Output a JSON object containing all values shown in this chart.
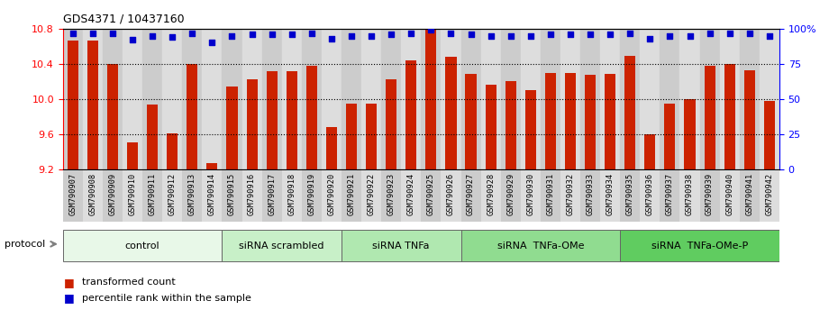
{
  "title": "GDS4371 / 10437160",
  "categories": [
    "GSM790907",
    "GSM790908",
    "GSM790909",
    "GSM790910",
    "GSM790911",
    "GSM790912",
    "GSM790913",
    "GSM790914",
    "GSM790915",
    "GSM790916",
    "GSM790917",
    "GSM790918",
    "GSM790919",
    "GSM790920",
    "GSM790921",
    "GSM790922",
    "GSM790923",
    "GSM790924",
    "GSM790925",
    "GSM790926",
    "GSM790927",
    "GSM790928",
    "GSM790929",
    "GSM790930",
    "GSM790931",
    "GSM790932",
    "GSM790933",
    "GSM790934",
    "GSM790935",
    "GSM790936",
    "GSM790937",
    "GSM790938",
    "GSM790939",
    "GSM790940",
    "GSM790941",
    "GSM790942"
  ],
  "bar_values": [
    10.67,
    10.67,
    10.4,
    9.5,
    9.94,
    9.61,
    10.4,
    9.27,
    10.14,
    10.22,
    10.32,
    10.32,
    10.38,
    9.68,
    9.95,
    9.95,
    10.22,
    10.44,
    10.8,
    10.48,
    10.28,
    10.16,
    10.2,
    10.1,
    10.3,
    10.3,
    10.27,
    10.28,
    10.49,
    9.6,
    9.95,
    10.0,
    10.38,
    10.4,
    10.33,
    9.98
  ],
  "percentile_values": [
    97,
    97,
    97,
    92,
    95,
    94,
    97,
    90,
    95,
    96,
    96,
    96,
    97,
    93,
    95,
    95,
    96,
    97,
    99,
    97,
    96,
    95,
    95,
    95,
    96,
    96,
    96,
    96,
    97,
    93,
    95,
    95,
    97,
    97,
    97,
    95
  ],
  "groups": [
    {
      "label": "control",
      "start": 0,
      "end": 8,
      "color": "#e8f8e8"
    },
    {
      "label": "siRNA scrambled",
      "start": 8,
      "end": 14,
      "color": "#c8f0c8"
    },
    {
      "label": "siRNA TNFa",
      "start": 14,
      "end": 20,
      "color": "#b0e8b0"
    },
    {
      "label": "siRNA  TNFa-OMe",
      "start": 20,
      "end": 28,
      "color": "#90dc90"
    },
    {
      "label": "siRNA  TNFa-OMe-P",
      "start": 28,
      "end": 36,
      "color": "#60cc60"
    }
  ],
  "ylim_left": [
    9.2,
    10.8
  ],
  "ylim_right": [
    0,
    100
  ],
  "yticks_left": [
    9.2,
    9.6,
    10.0,
    10.4,
    10.8
  ],
  "yticks_right": [
    0,
    25,
    50,
    75,
    100
  ],
  "bar_color": "#cc2200",
  "dot_color": "#0000cc",
  "bg_color": "#ffffff",
  "legend_items": [
    "transformed count",
    "percentile rank within the sample"
  ],
  "protocol_label": "protocol",
  "xtick_colors": [
    "#cccccc",
    "#dddddd"
  ],
  "grid_lines": [
    9.6,
    10.0,
    10.4
  ]
}
